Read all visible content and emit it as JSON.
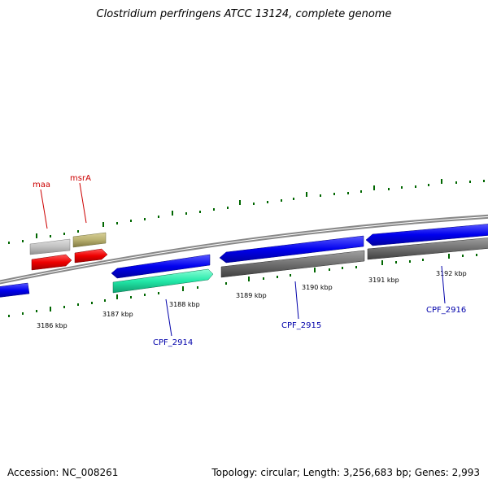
{
  "title": "Clostridium perfringens ATCC 13124, complete genome",
  "footer": {
    "accession": "Accession: NC_008261",
    "summary": "Topology: circular; Length: 3,256,683 bp; Genes: 2,993"
  },
  "axis_ticks": [
    "3186 kbp",
    "3187 kbp",
    "3188 kbp",
    "3189 kbp",
    "3190 kbp",
    "3191 kbp",
    "3192 kbp"
  ],
  "gene_labels": {
    "maa": "maa",
    "msrA": "msrA",
    "cpf2914": "CPF_2914",
    "cpf2915": "CPF_2915",
    "cpf2916": "CPF_2916"
  },
  "colors": {
    "gene_blue": "#0000ee",
    "gene_red": "#ee0000",
    "gene_teal": "#22e8a8",
    "gene_gray": "#707070",
    "gene_light_gray": "#c0c0c0",
    "gene_khaki": "#b8b070",
    "tick_green": "#006600",
    "backbone": "#888888",
    "label_red": "#cc0000",
    "label_blue": "#0000aa"
  }
}
